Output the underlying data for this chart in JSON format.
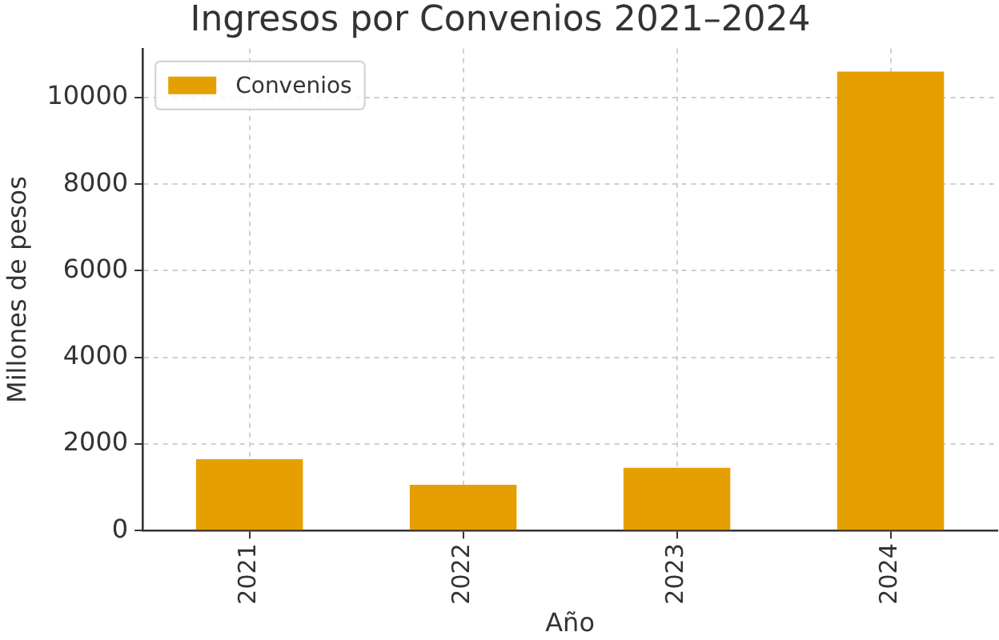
{
  "chart_data": {
    "type": "bar",
    "title": "Ingresos por Convenios 2021–2024",
    "xlabel": "Año",
    "ylabel": "Millones de pesos",
    "categories": [
      "2021",
      "2022",
      "2023",
      "2024"
    ],
    "series": [
      {
        "name": "Convenios",
        "color": "#e69f00",
        "values": [
          1650,
          1060,
          1450,
          10600
        ]
      }
    ],
    "ylim": [
      0,
      11130
    ],
    "yticks": [
      0,
      2000,
      4000,
      6000,
      8000,
      10000
    ],
    "grid": true,
    "legend": "top left"
  }
}
